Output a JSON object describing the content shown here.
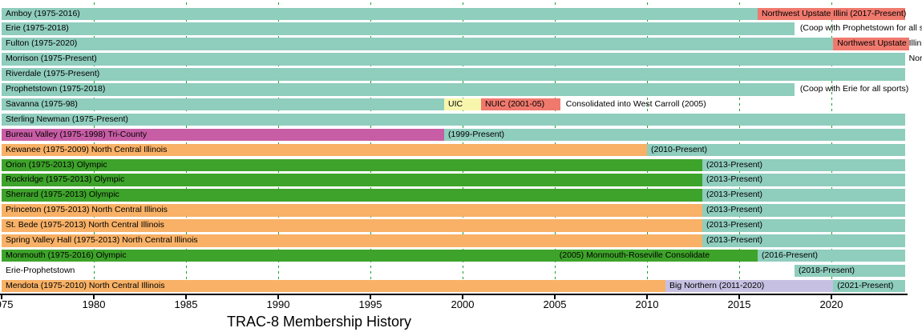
{
  "chart_data": {
    "type": "bar",
    "subtype": "gantt-timeline",
    "title": "TRAC-8 Membership History",
    "x_axis": {
      "unit": "year",
      "range_start": 1975,
      "range_end": 2024,
      "present_value": "Present",
      "gridlines": "dashed green vertical every 5 years",
      "ticks": [
        {
          "year": 1975,
          "label": "1975"
        },
        {
          "year": 1980,
          "label": "1980"
        },
        {
          "year": 1985,
          "label": "1985"
        },
        {
          "year": 1990,
          "label": "1990"
        },
        {
          "year": 1995,
          "label": "1995"
        },
        {
          "year": 2000,
          "label": "2000"
        },
        {
          "year": 2005,
          "label": "2005"
        },
        {
          "year": 2010,
          "label": "2010"
        },
        {
          "year": 2015,
          "label": "2015"
        },
        {
          "year": 2020,
          "label": "2020"
        }
      ]
    },
    "colors": {
      "teal": "#8FCDBD",
      "red": "#F0796E",
      "yellow": "#F8F6AD",
      "magenta": "#C75DA5",
      "orange": "#F8B166",
      "green": "#3EA32A",
      "lavender": "#C6C0E2",
      "grid": "#1CA12E",
      "axis": "#000000",
      "text": "#000000",
      "background": "#FFFFFF"
    },
    "rows": [
      {
        "name": "Amboy",
        "segments": [
          {
            "start": 1975,
            "end": 2016,
            "color": "teal",
            "label": "Amboy (1975-2016)"
          },
          {
            "start": 2016,
            "end": "Present",
            "color": "red",
            "label": "Northwest Upstate Illini (2017-Present)"
          }
        ]
      },
      {
        "name": "Erie",
        "segments": [
          {
            "start": 1975,
            "end": 2018,
            "color": "teal",
            "label": "Erie (1975-2018)"
          }
        ],
        "annotations": [
          {
            "year": 2018.3,
            "text": "(Coop with Prophetstown for all sp"
          }
        ]
      },
      {
        "name": "Fulton",
        "segments": [
          {
            "start": 1975,
            "end": 2020.1,
            "color": "teal",
            "label": "Fulton (1975-2020)"
          },
          {
            "start": 2020.1,
            "end": 2024.2,
            "color": "red",
            "label": "Northwest Upstate Illini"
          }
        ]
      },
      {
        "name": "Morrison",
        "segments": [
          {
            "start": 1975,
            "end": "Present",
            "color": "teal",
            "label": "Morrison (1975-Present)"
          }
        ],
        "annotations": [
          {
            "year": 2024.2,
            "text": "Nor"
          }
        ]
      },
      {
        "name": "Riverdale",
        "segments": [
          {
            "start": 1975,
            "end": "Present",
            "color": "teal",
            "label": "Riverdale (1975-Present)"
          }
        ]
      },
      {
        "name": "Prophetstown",
        "segments": [
          {
            "start": 1975,
            "end": 2018,
            "color": "teal",
            "label": "Prophetstown (1975-2018)"
          }
        ],
        "annotations": [
          {
            "year": 2018.3,
            "text": "(Coop with Erie for all sports)"
          }
        ]
      },
      {
        "name": "Savanna",
        "segments": [
          {
            "start": 1975,
            "end": 1999,
            "color": "teal",
            "label": "Savanna (1975-98)"
          },
          {
            "start": 1999,
            "end": 2001,
            "color": "yellow",
            "label": "UIC"
          },
          {
            "start": 2001,
            "end": 2005.3,
            "color": "red",
            "label": "NUIC (2001-05)"
          }
        ],
        "annotations": [
          {
            "year": 2005.6,
            "text": "Consolidated into West Carroll (2005)"
          }
        ]
      },
      {
        "name": "Sterling Newman",
        "segments": [
          {
            "start": 1975,
            "end": "Present",
            "color": "teal",
            "label": "Sterling Newman (1975-Present)"
          }
        ]
      },
      {
        "name": "Bureau Valley",
        "segments": [
          {
            "start": 1975,
            "end": 1999,
            "color": "magenta",
            "label": "Bureau Valley (1975-1998) Tri-County"
          },
          {
            "start": 1999,
            "end": "Present",
            "color": "teal",
            "label": "(1999-Present)"
          }
        ]
      },
      {
        "name": "Kewanee",
        "segments": [
          {
            "start": 1975,
            "end": 2010,
            "color": "orange",
            "label": "Kewanee (1975-2009) North Central Illinois"
          },
          {
            "start": 2010,
            "end": "Present",
            "color": "teal",
            "label": "(2010-Present)"
          }
        ]
      },
      {
        "name": "Orion",
        "segments": [
          {
            "start": 1975,
            "end": 2013,
            "color": "green",
            "label": "Orion (1975-2013) Olympic"
          },
          {
            "start": 2013,
            "end": "Present",
            "color": "teal",
            "label": "(2013-Present)"
          }
        ]
      },
      {
        "name": "Rockridge",
        "segments": [
          {
            "start": 1975,
            "end": 2013,
            "color": "green",
            "label": "Rockridge (1975-2013) Olympic"
          },
          {
            "start": 2013,
            "end": "Present",
            "color": "teal",
            "label": "(2013-Present)"
          }
        ]
      },
      {
        "name": "Sherrard",
        "segments": [
          {
            "start": 1975,
            "end": 2013,
            "color": "green",
            "label": "Sherrard (1975-2013) Olympic"
          },
          {
            "start": 2013,
            "end": "Present",
            "color": "teal",
            "label": "(2013-Present)"
          }
        ]
      },
      {
        "name": "Princeton",
        "segments": [
          {
            "start": 1975,
            "end": 2013,
            "color": "orange",
            "label": "Princeton (1975-2013) North Central Illinois"
          },
          {
            "start": 2013,
            "end": "Present",
            "color": "teal",
            "label": "(2013-Present)"
          }
        ]
      },
      {
        "name": "St. Bede",
        "segments": [
          {
            "start": 1975,
            "end": 2013,
            "color": "orange",
            "label": "St. Bede (1975-2013) North Central Illinois"
          },
          {
            "start": 2013,
            "end": "Present",
            "color": "teal",
            "label": "(2013-Present)"
          }
        ]
      },
      {
        "name": "Spring Valley Hall",
        "segments": [
          {
            "start": 1975,
            "end": 2013,
            "color": "orange",
            "label": "Spring Valley Hall (1975-2013) North Central Illinois"
          },
          {
            "start": 2013,
            "end": "Present",
            "color": "teal",
            "label": "(2013-Present)"
          }
        ]
      },
      {
        "name": "Monmouth",
        "segments": [
          {
            "start": 1975,
            "end": 2016,
            "color": "green",
            "label": "Monmouth (1975-2016) Olympic"
          },
          {
            "start": 2016,
            "end": "Present",
            "color": "teal",
            "label": "(2016-Present)"
          }
        ],
        "annotations": [
          {
            "year": 2005.25,
            "text": "(2005) Monmouth-Roseville Consolidate"
          }
        ]
      },
      {
        "name": "Erie-Prophetstown",
        "segments": [
          {
            "start": 1975,
            "end": 2018,
            "color": "none",
            "label": "Erie-Prophetstown"
          },
          {
            "start": 2018,
            "end": "Present",
            "color": "teal",
            "label": "(2018-Present)"
          }
        ]
      },
      {
        "name": "Mendota",
        "segments": [
          {
            "start": 1975,
            "end": 2011,
            "color": "orange",
            "label": "Mendota (1975-2010) North Central Illinois"
          },
          {
            "start": 2011,
            "end": 2020.1,
            "color": "lavender",
            "label": "Big Northern (2011-2020)"
          },
          {
            "start": 2020.1,
            "end": "Present",
            "color": "teal",
            "label": "(2021-Present)"
          }
        ]
      }
    ]
  }
}
